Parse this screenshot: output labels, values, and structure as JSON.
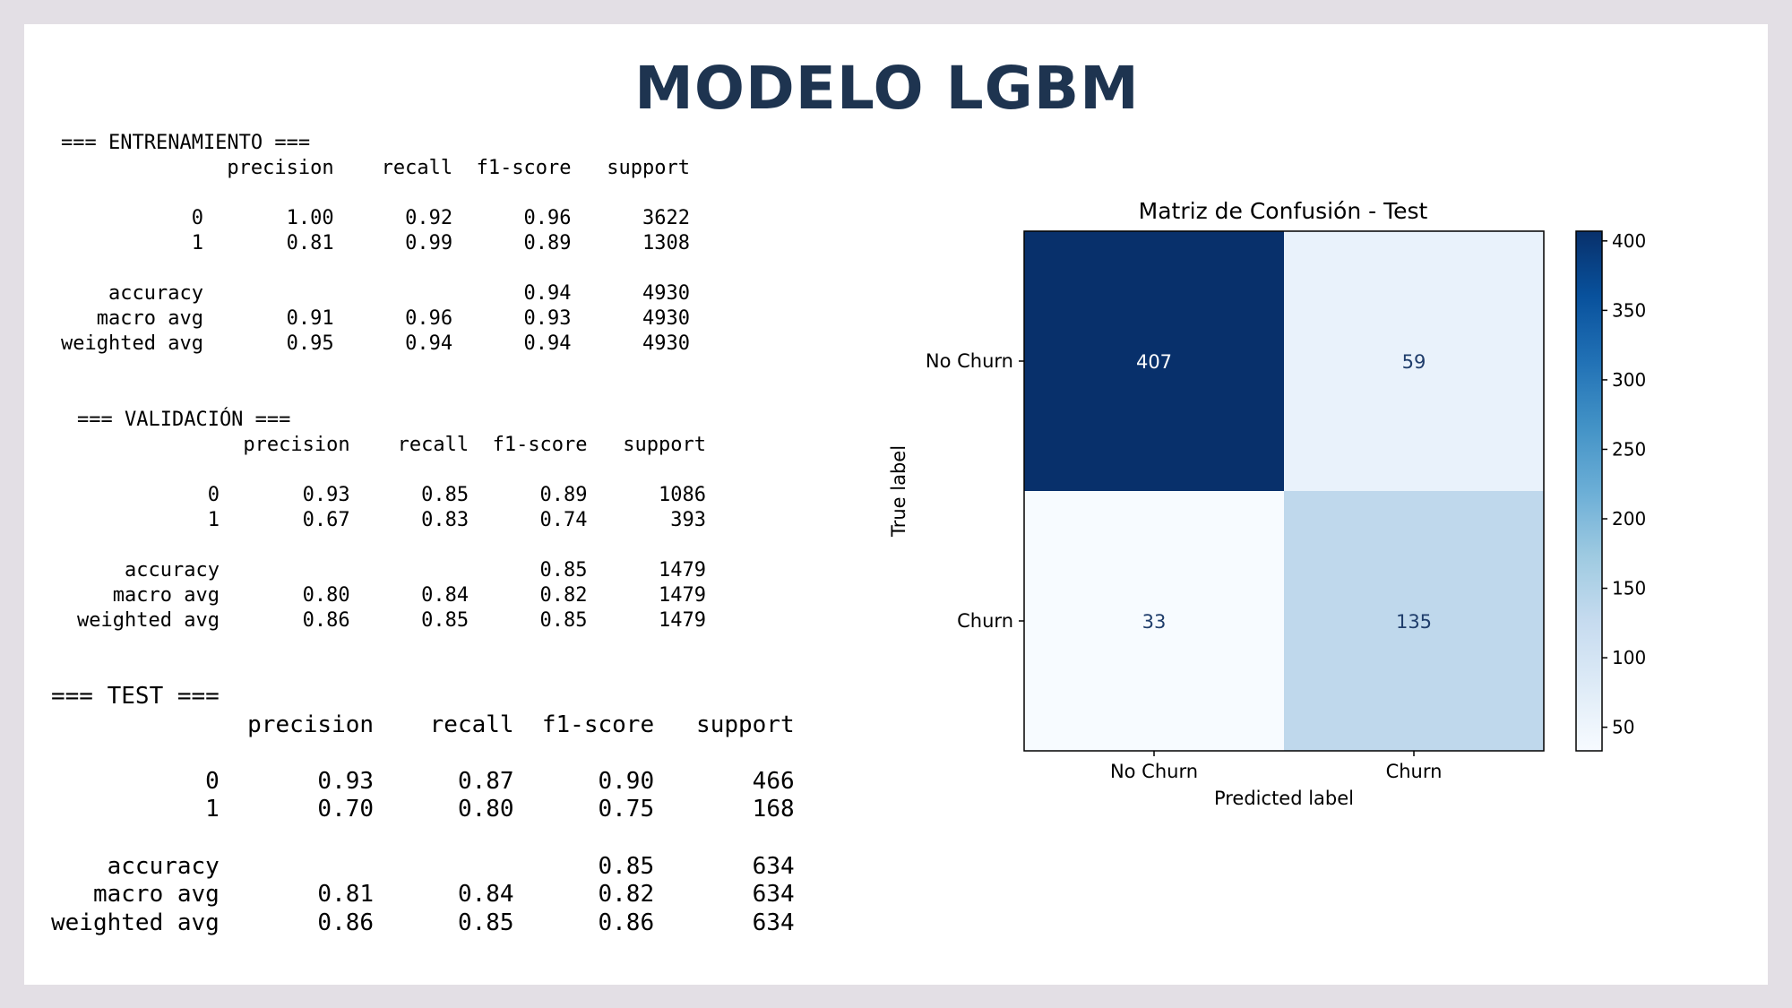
{
  "page_title": "MODELO LGBM",
  "reports": [
    {
      "name": "training",
      "lines": [
        "=== ENTRENAMIENTO ===",
        "              precision    recall  f1-score   support",
        "",
        "           0       1.00      0.92      0.96      3622",
        "           1       0.81      0.99      0.89      1308",
        "",
        "    accuracy                           0.94      4930",
        "   macro avg       0.91      0.96      0.93      4930",
        "weighted avg       0.95      0.94      0.94      4930"
      ]
    },
    {
      "name": "validation",
      "lines": [
        "=== VALIDACIÓN ===",
        "              precision    recall  f1-score   support",
        "",
        "           0       0.93      0.85      0.89      1086",
        "           1       0.67      0.83      0.74       393",
        "",
        "    accuracy                           0.85      1479",
        "   macro avg       0.80      0.84      0.82      1479",
        "weighted avg       0.86      0.85      0.85      1479"
      ]
    },
    {
      "name": "test",
      "lines": [
        "=== TEST ===",
        "              precision    recall  f1-score   support",
        "",
        "           0       0.93      0.87      0.90       466",
        "           1       0.70      0.80      0.75       168",
        "",
        "    accuracy                           0.85       634",
        "   macro avg       0.81      0.84      0.82       634",
        "weighted avg       0.86      0.85      0.86       634"
      ]
    }
  ],
  "chart_data": {
    "type": "heatmap",
    "title": "Matriz de Confusión - Test",
    "xlabel": "Predicted label",
    "ylabel": "True label",
    "x_categories": [
      "No Churn",
      "Churn"
    ],
    "y_categories": [
      "No Churn",
      "Churn"
    ],
    "values": [
      [
        407,
        59
      ],
      [
        33,
        135
      ]
    ],
    "colormap": "Blues",
    "colorbar": {
      "min": 33,
      "max": 407,
      "ticks": [
        50,
        100,
        150,
        200,
        250,
        300,
        350,
        400
      ]
    },
    "colors": {
      "high": "#08306b",
      "low": "#f7fbff"
    }
  }
}
